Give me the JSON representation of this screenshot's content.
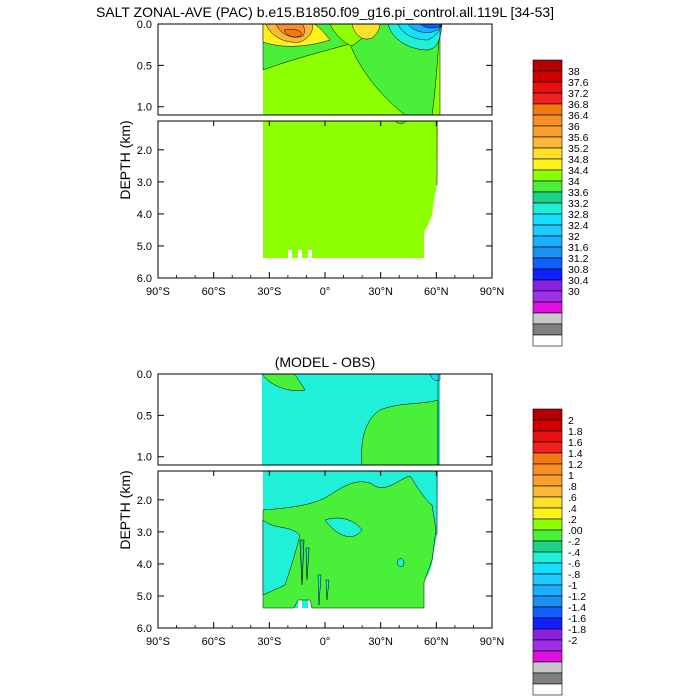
{
  "chart_data": [
    {
      "type": "heatmap",
      "title": "SALT ZONAL-AVE (PAC) b.e15.B1850.f09_g16.pi_control.all.119L [34-53]",
      "ylabel": "DEPTH (km)",
      "xlabel": "",
      "x_ticks": [
        "90°S",
        "60°S",
        "30°S",
        "0°",
        "30°N",
        "60°N",
        "90°N"
      ],
      "xlim": [
        -90,
        90
      ],
      "upper_y_ticks": [
        "0.0",
        "0.5",
        "1.0"
      ],
      "upper_ylim": [
        0,
        1.1
      ],
      "lower_y_ticks": [
        "2.0",
        "3.0",
        "4.0",
        "5.0",
        "6.0"
      ],
      "lower_ylim": [
        1.1,
        6.0
      ],
      "legend_placement": "right",
      "colorbar_labels": [
        "38",
        "37.6",
        "37.2",
        "36.8",
        "36.4",
        "36",
        "35.6",
        "35.2",
        "34.8",
        "34.4",
        "34",
        "33.6",
        "33.2",
        "32.8",
        "32.4",
        "32",
        "31.6",
        "31.2",
        "30.8",
        "30.4",
        "30"
      ],
      "colorbar_colors": [
        "#b40000",
        "#d00000",
        "#e81010",
        "#f02020",
        "#f47a10",
        "#f8902a",
        "#faa030",
        "#fbb838",
        "#fde02a",
        "#fff21a",
        "#8cff00",
        "#4aef3a",
        "#1ed28a",
        "#20f0d8",
        "#16e0ff",
        "#1ecaff",
        "#1ab0ff",
        "#1a90f0",
        "#1060ff",
        "#1020ff",
        "#8a20e0",
        "#a030e8",
        "#e010e0",
        "#c8c8c8",
        "#808080",
        "#ffffff"
      ]
    },
    {
      "type": "heatmap",
      "title": "(MODEL - OBS)",
      "ylabel": "DEPTH (km)",
      "xlabel": "",
      "x_ticks": [
        "90°S",
        "60°S",
        "30°S",
        "0°",
        "30°N",
        "60°N",
        "90°N"
      ],
      "xlim": [
        -90,
        90
      ],
      "upper_y_ticks": [
        "0.0",
        "0.5",
        "1.0"
      ],
      "upper_ylim": [
        0,
        1.1
      ],
      "lower_y_ticks": [
        "2.0",
        "3.0",
        "4.0",
        "5.0",
        "6.0"
      ],
      "lower_ylim": [
        1.1,
        6.0
      ],
      "legend_placement": "right",
      "colorbar_labels": [
        "2",
        "1.8",
        "1.6",
        "1.4",
        "1.2",
        "1",
        ".8",
        ".6",
        ".4",
        ".2",
        ".00",
        "-.2",
        "-.4",
        "-.6",
        "-.8",
        "-1",
        "-1.2",
        "-1.4",
        "-1.6",
        "-1.8",
        "-2"
      ],
      "colorbar_colors": [
        "#b40000",
        "#d00000",
        "#e81010",
        "#f02020",
        "#f47a10",
        "#f8902a",
        "#faa030",
        "#fbb838",
        "#fde02a",
        "#fff21a",
        "#8cff00",
        "#4aef3a",
        "#1ed28a",
        "#20f0d8",
        "#16e0ff",
        "#1ecaff",
        "#1ab0ff",
        "#1a90f0",
        "#1060ff",
        "#1020ff",
        "#8a20e0",
        "#a030e8",
        "#e010e0",
        "#c8c8c8",
        "#808080",
        "#ffffff"
      ]
    }
  ]
}
